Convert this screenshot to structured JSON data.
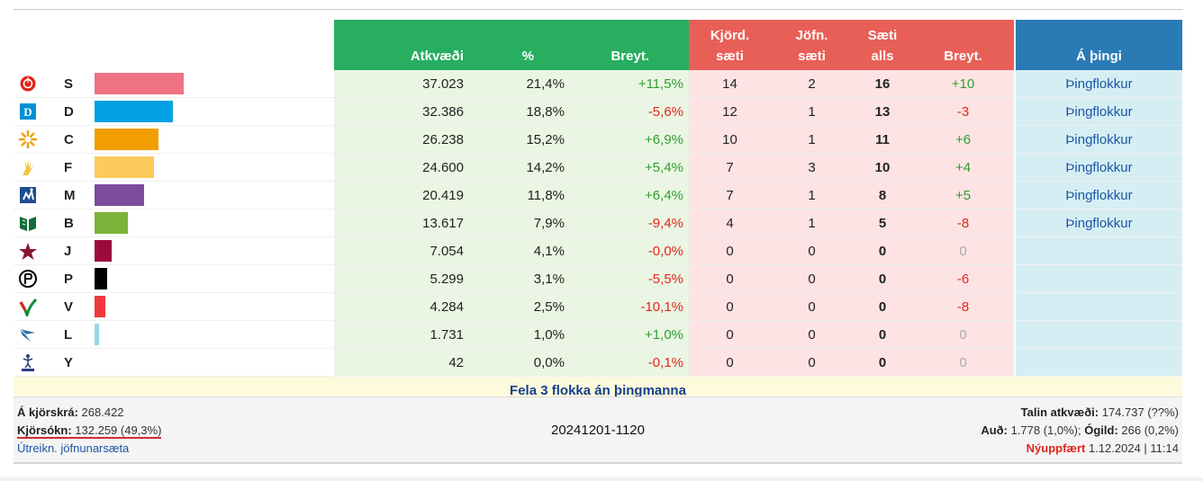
{
  "header": {
    "atkvaedi": "Atkvæði",
    "pct": "%",
    "breyt1": "Breyt.",
    "kjord_l1": "Kjörd.",
    "kjord_l2": "sæti",
    "jofn_l1": "Jöfn.",
    "jofn_l2": "sæti",
    "saeti_l1": "Sæti",
    "saeti_l2": "alls",
    "breyt2": "Breyt.",
    "a_thingi": "Á þingi"
  },
  "colors": {
    "green": "#27ae60",
    "red": "#e85f57",
    "blue": "#2a7bb5"
  },
  "rows": [
    {
      "letter": "S",
      "icon": "rose-icon",
      "color": "#ee7284",
      "share": 0.214,
      "votes": "37.023",
      "pct": "21,4%",
      "change": "+11,5%",
      "ctype": "pos",
      "kjord": "14",
      "jofn": "2",
      "seats": "16",
      "schange": "+10",
      "sctype": "pos",
      "thing": "Þingflokkur"
    },
    {
      "letter": "D",
      "icon": "d-square-icon",
      "color": "#00a0e3",
      "share": 0.188,
      "votes": "32.386",
      "pct": "18,8%",
      "change": "-5,6%",
      "ctype": "neg",
      "kjord": "12",
      "jofn": "1",
      "seats": "13",
      "schange": "-3",
      "sctype": "neg",
      "thing": "Þingflokkur"
    },
    {
      "letter": "C",
      "icon": "sun-icon",
      "color": "#f29e02",
      "share": 0.152,
      "votes": "26.238",
      "pct": "15,2%",
      "change": "+6,9%",
      "ctype": "pos",
      "kjord": "10",
      "jofn": "1",
      "seats": "11",
      "schange": "+6",
      "sctype": "pos",
      "thing": "Þingflokkur"
    },
    {
      "letter": "F",
      "icon": "hand-icon",
      "color": "#fdcb5c",
      "share": 0.142,
      "votes": "24.600",
      "pct": "14,2%",
      "change": "+5,4%",
      "ctype": "pos",
      "kjord": "7",
      "jofn": "3",
      "seats": "10",
      "schange": "+4",
      "sctype": "pos",
      "thing": "Þingflokkur"
    },
    {
      "letter": "M",
      "icon": "m-figure-icon",
      "color": "#7d4b9c",
      "share": 0.118,
      "votes": "20.419",
      "pct": "11,8%",
      "change": "+6,4%",
      "ctype": "pos",
      "kjord": "7",
      "jofn": "1",
      "seats": "8",
      "schange": "+5",
      "sctype": "pos",
      "thing": "Þingflokkur"
    },
    {
      "letter": "B",
      "icon": "book-icon",
      "color": "#7cb33a",
      "share": 0.079,
      "votes": "13.617",
      "pct": "7,9%",
      "change": "-9,4%",
      "ctype": "neg",
      "kjord": "4",
      "jofn": "1",
      "seats": "5",
      "schange": "-8",
      "sctype": "neg",
      "thing": "Þingflokkur"
    },
    {
      "letter": "J",
      "icon": "star-figure-icon",
      "color": "#9c0b3a",
      "share": 0.041,
      "votes": "7.054",
      "pct": "4,1%",
      "change": "-0,0%",
      "ctype": "neg",
      "kjord": "0",
      "jofn": "0",
      "seats": "0",
      "schange": "0",
      "sctype": "zero",
      "thing": ""
    },
    {
      "letter": "P",
      "icon": "pirate-flag-icon",
      "color": "#000000",
      "share": 0.031,
      "votes": "5.299",
      "pct": "3,1%",
      "change": "-5,5%",
      "ctype": "neg",
      "kjord": "0",
      "jofn": "0",
      "seats": "0",
      "schange": "-6",
      "sctype": "neg",
      "thing": ""
    },
    {
      "letter": "V",
      "icon": "v-leaf-icon",
      "color": "#f0383c",
      "share": 0.025,
      "votes": "4.284",
      "pct": "2,5%",
      "change": "-10,1%",
      "ctype": "neg",
      "kjord": "0",
      "jofn": "0",
      "seats": "0",
      "schange": "-8",
      "sctype": "neg",
      "thing": ""
    },
    {
      "letter": "L",
      "icon": "bird-icon",
      "color": "#9ad7e6",
      "share": 0.01,
      "votes": "1.731",
      "pct": "1,0%",
      "change": "+1,0%",
      "ctype": "pos",
      "kjord": "0",
      "jofn": "0",
      "seats": "0",
      "schange": "0",
      "sctype": "zero",
      "thing": ""
    },
    {
      "letter": "Y",
      "icon": "figure-icon",
      "color": "#cccccc",
      "share": 0.0,
      "votes": "42",
      "pct": "0,0%",
      "change": "-0,1%",
      "ctype": "neg",
      "kjord": "0",
      "jofn": "0",
      "seats": "0",
      "schange": "0",
      "sctype": "zero",
      "thing": ""
    }
  ],
  "fela": "Fela 3 flokka án þingmanna",
  "footer": {
    "kjorskra_label": "Á kjörskrá:",
    "kjorskra_value": "268.422",
    "kjorsokn_label": "Kjörsókn:",
    "kjorsokn_value": "132.259 (49,3%)",
    "link": "Útreikn. jöfnunarsæta",
    "timestamp": "20241201-1120",
    "talin_label": "Talin atkvæði:",
    "talin_value": "174.737 (??%)",
    "aud_label": "Auð:",
    "aud_value": "1.778 (1,0%);",
    "ogild_label": "Ógild:",
    "ogild_value": "266 (0,2%)",
    "nyuppfaert_label": "Nýuppfært",
    "nyuppfaert_value": "1.12.2024 | 11:14"
  }
}
